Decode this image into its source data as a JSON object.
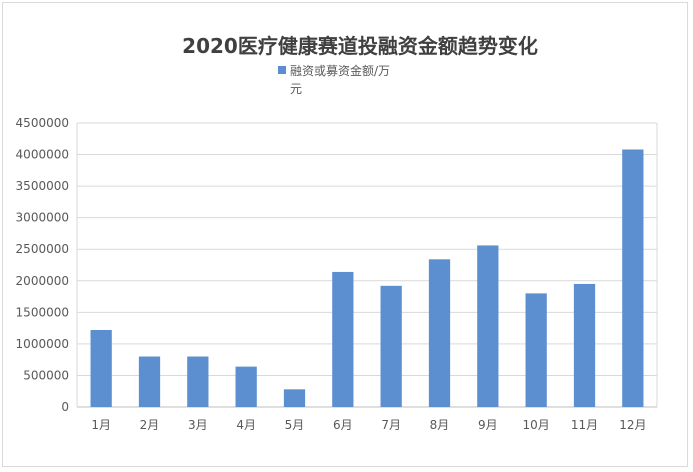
{
  "chart_data": {
    "type": "bar",
    "title": "2020医疗健康赛道投融资金额趋势变化",
    "xlabel": "",
    "ylabel": "",
    "categories": [
      "1月",
      "2月",
      "3月",
      "4月",
      "5月",
      "6月",
      "7月",
      "8月",
      "9月",
      "10月",
      "11月",
      "12月"
    ],
    "series": [
      {
        "name": "融资或募资金额/万元",
        "name_lines": [
          "融资或募资金额/万",
          "元"
        ],
        "values": [
          1220000,
          800000,
          800000,
          640000,
          280000,
          2140000,
          1920000,
          2340000,
          2560000,
          1800000,
          1950000,
          4080000
        ],
        "color": "#5b8fd0"
      }
    ],
    "ylim": [
      0,
      4500000
    ],
    "yticks": [
      "0",
      "500000",
      "1000000",
      "1500000",
      "2000000",
      "2500000",
      "3000000",
      "3500000",
      "4000000",
      "4500000"
    ],
    "grid": true,
    "legend_position": "top"
  }
}
